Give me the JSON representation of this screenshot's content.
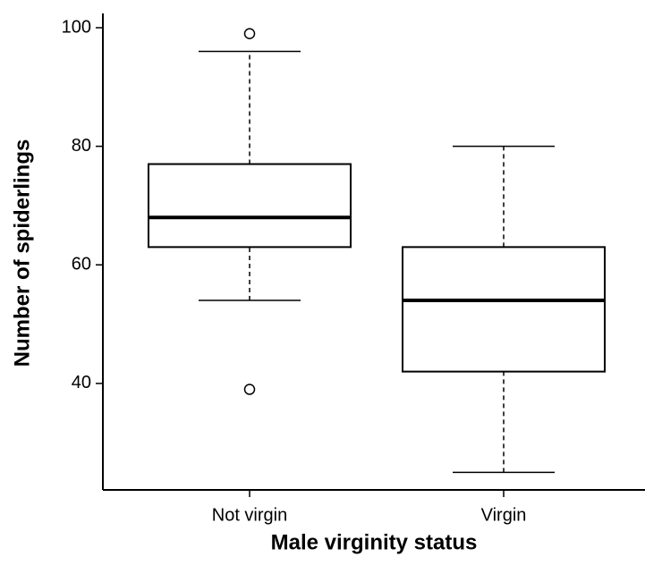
{
  "chart_data": {
    "type": "box",
    "x_label": "Male virginity status",
    "y_label": "Number of spiderlings",
    "categories": [
      "Not virgin",
      "Virgin"
    ],
    "boxes": [
      {
        "whisker_low": 54,
        "q1": 63,
        "median": 68,
        "q3": 77,
        "whisker_high": 96,
        "outliers": [
          99,
          39
        ]
      },
      {
        "whisker_low": 25,
        "q1": 42,
        "median": 54,
        "q3": 63,
        "whisker_high": 80,
        "outliers": []
      }
    ],
    "color": "#000000",
    "ylim": [
      22.04,
      101.96
    ],
    "yticks": [
      40,
      60,
      80,
      100
    ],
    "grid": false
  }
}
